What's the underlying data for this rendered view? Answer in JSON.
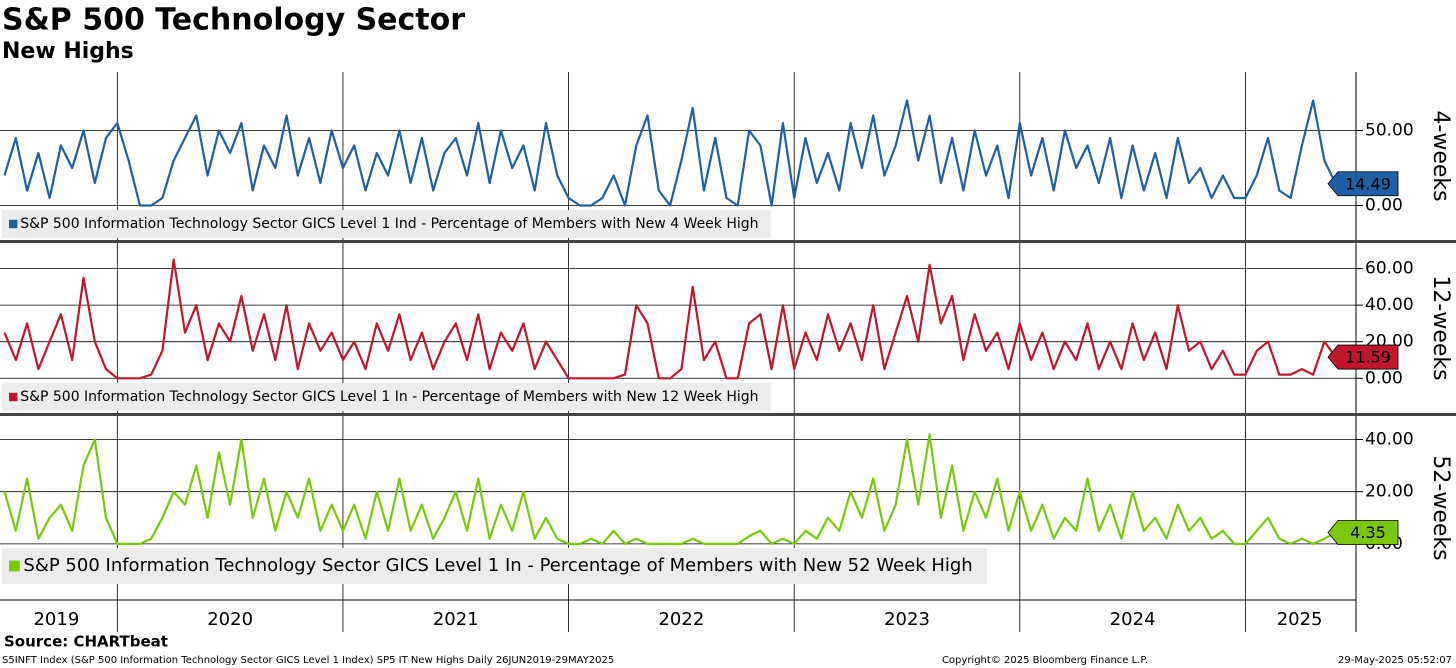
{
  "title": "S&P 500 Technology Sector",
  "subtitle": "New Highs",
  "source": "Source: CHARTbeat",
  "footer_left": "S5INFT Index (S&P 500 Information Technology Sector GICS Level 1 Index) SP5 IT New Highs  Daily 26JUN2019-29MAY2025",
  "footer_center": "Copyright© 2025 Bloomberg Finance L.P.",
  "footer_right": "29-May-2025 05:52:07",
  "chart_data": [
    {
      "type": "line",
      "ylabel": "4-weeks",
      "x": [
        2019.5,
        2019.55,
        2019.6,
        2019.65,
        2019.7,
        2019.75,
        2019.8,
        2019.85,
        2019.9,
        2019.95,
        2020,
        2020.05,
        2020.1,
        2020.15,
        2020.2,
        2020.25,
        2020.3,
        2020.35,
        2020.4,
        2020.45,
        2020.5,
        2020.55,
        2020.6,
        2020.65,
        2020.7,
        2020.75,
        2020.8,
        2020.85,
        2020.9,
        2020.95,
        2021,
        2021.05,
        2021.1,
        2021.15,
        2021.2,
        2021.25,
        2021.3,
        2021.35,
        2021.4,
        2021.45,
        2021.5,
        2021.55,
        2021.6,
        2021.65,
        2021.7,
        2021.75,
        2021.8,
        2021.85,
        2021.9,
        2021.95,
        2022,
        2022.05,
        2022.1,
        2022.15,
        2022.2,
        2022.25,
        2022.3,
        2022.35,
        2022.4,
        2022.45,
        2022.5,
        2022.55,
        2022.6,
        2022.65,
        2022.7,
        2022.75,
        2022.8,
        2022.85,
        2022.9,
        2022.95,
        2023,
        2023.05,
        2023.1,
        2023.15,
        2023.2,
        2023.25,
        2023.3,
        2023.35,
        2023.4,
        2023.45,
        2023.5,
        2023.55,
        2023.6,
        2023.65,
        2023.7,
        2023.75,
        2023.8,
        2023.85,
        2023.9,
        2023.95,
        2024,
        2024.05,
        2024.1,
        2024.15,
        2024.2,
        2024.25,
        2024.3,
        2024.35,
        2024.4,
        2024.45,
        2024.5,
        2024.55,
        2024.6,
        2024.65,
        2024.7,
        2024.75,
        2024.8,
        2024.85,
        2024.9,
        2024.95,
        2025,
        2025.05,
        2025.1,
        2025.15,
        2025.2,
        2025.25,
        2025.3,
        2025.35,
        2025.4
      ],
      "xlim": [
        2019.48,
        2025.49
      ],
      "xticks": [
        2020,
        2021,
        2022,
        2023,
        2024,
        2025
      ],
      "ylim": [
        -23,
        89
      ],
      "yticks": [
        {
          "value": 0,
          "label": "0.00"
        },
        {
          "value": 50,
          "label": "50.00"
        }
      ],
      "series": [
        {
          "name": "S&P 500 Information Technology Sector GICS Level 1 Ind - Percentage of Members with New 4 Week High",
          "color": "#1f5fa6",
          "values": [
            20,
            45,
            10,
            35,
            5,
            40,
            25,
            50,
            15,
            45,
            55,
            30,
            0,
            0,
            5,
            30,
            45,
            60,
            20,
            50,
            35,
            55,
            10,
            40,
            25,
            60,
            20,
            45,
            15,
            50,
            25,
            40,
            10,
            35,
            20,
            50,
            15,
            45,
            10,
            35,
            45,
            20,
            55,
            15,
            50,
            25,
            40,
            10,
            55,
            20,
            5,
            0,
            0,
            5,
            20,
            0,
            40,
            60,
            10,
            0,
            30,
            65,
            10,
            45,
            5,
            0,
            50,
            40,
            0,
            55,
            5,
            45,
            15,
            35,
            10,
            55,
            25,
            60,
            20,
            40,
            70,
            30,
            60,
            15,
            45,
            10,
            50,
            20,
            40,
            5,
            55,
            20,
            45,
            10,
            50,
            25,
            40,
            15,
            45,
            5,
            40,
            10,
            35,
            5,
            45,
            15,
            25,
            5,
            20,
            5,
            5,
            20,
            45,
            10,
            5,
            40,
            70,
            30,
            14.49
          ]
        }
      ]
    },
    {
      "type": "line",
      "ylabel": "12-weeks",
      "x": [
        2019.5,
        2019.55,
        2019.6,
        2019.65,
        2019.7,
        2019.75,
        2019.8,
        2019.85,
        2019.9,
        2019.95,
        2020,
        2020.05,
        2020.1,
        2020.15,
        2020.2,
        2020.25,
        2020.3,
        2020.35,
        2020.4,
        2020.45,
        2020.5,
        2020.55,
        2020.6,
        2020.65,
        2020.7,
        2020.75,
        2020.8,
        2020.85,
        2020.9,
        2020.95,
        2021,
        2021.05,
        2021.1,
        2021.15,
        2021.2,
        2021.25,
        2021.3,
        2021.35,
        2021.4,
        2021.45,
        2021.5,
        2021.55,
        2021.6,
        2021.65,
        2021.7,
        2021.75,
        2021.8,
        2021.85,
        2021.9,
        2021.95,
        2022,
        2022.05,
        2022.1,
        2022.15,
        2022.2,
        2022.25,
        2022.3,
        2022.35,
        2022.4,
        2022.45,
        2022.5,
        2022.55,
        2022.6,
        2022.65,
        2022.7,
        2022.75,
        2022.8,
        2022.85,
        2022.9,
        2022.95,
        2023,
        2023.05,
        2023.1,
        2023.15,
        2023.2,
        2023.25,
        2023.3,
        2023.35,
        2023.4,
        2023.45,
        2023.5,
        2023.55,
        2023.6,
        2023.65,
        2023.7,
        2023.75,
        2023.8,
        2023.85,
        2023.9,
        2023.95,
        2024,
        2024.05,
        2024.1,
        2024.15,
        2024.2,
        2024.25,
        2024.3,
        2024.35,
        2024.4,
        2024.45,
        2024.5,
        2024.55,
        2024.6,
        2024.65,
        2024.7,
        2024.75,
        2024.8,
        2024.85,
        2024.9,
        2024.95,
        2025,
        2025.05,
        2025.1,
        2025.15,
        2025.2,
        2025.25,
        2025.3,
        2025.35,
        2025.4
      ],
      "xlim": [
        2019.48,
        2025.49
      ],
      "xticks": [
        2020,
        2021,
        2022,
        2023,
        2024,
        2025
      ],
      "ylim": [
        -19,
        74
      ],
      "yticks": [
        {
          "value": 0,
          "label": "0.00"
        },
        {
          "value": 20,
          "label": "20.00"
        },
        {
          "value": 40,
          "label": "40.00"
        },
        {
          "value": 60,
          "label": "60.00"
        }
      ],
      "series": [
        {
          "name": "S&P 500 Information Technology Sector GICS Level 1 In - Percentage of Members with New 12 Week High",
          "color": "#c0162e",
          "values": [
            25,
            10,
            30,
            5,
            20,
            35,
            10,
            55,
            20,
            5,
            0,
            0,
            0,
            2,
            15,
            65,
            25,
            40,
            10,
            30,
            20,
            45,
            15,
            35,
            10,
            40,
            5,
            30,
            15,
            25,
            10,
            20,
            5,
            30,
            15,
            35,
            10,
            25,
            5,
            20,
            30,
            10,
            35,
            5,
            25,
            15,
            30,
            5,
            20,
            10,
            0,
            0,
            0,
            0,
            0,
            2,
            40,
            30,
            0,
            0,
            5,
            50,
            10,
            20,
            0,
            0,
            30,
            35,
            5,
            40,
            5,
            25,
            10,
            35,
            15,
            30,
            10,
            40,
            5,
            25,
            45,
            20,
            62,
            30,
            45,
            10,
            35,
            15,
            25,
            5,
            30,
            10,
            25,
            5,
            20,
            10,
            30,
            5,
            20,
            5,
            30,
            10,
            25,
            5,
            40,
            15,
            20,
            5,
            15,
            2,
            2,
            15,
            20,
            2,
            2,
            5,
            2,
            20,
            11.59
          ]
        }
      ]
    },
    {
      "type": "line",
      "ylabel": "52-weeks",
      "x": [
        2019.5,
        2019.55,
        2019.6,
        2019.65,
        2019.7,
        2019.75,
        2019.8,
        2019.85,
        2019.9,
        2019.95,
        2020,
        2020.05,
        2020.1,
        2020.15,
        2020.2,
        2020.25,
        2020.3,
        2020.35,
        2020.4,
        2020.45,
        2020.5,
        2020.55,
        2020.6,
        2020.65,
        2020.7,
        2020.75,
        2020.8,
        2020.85,
        2020.9,
        2020.95,
        2021,
        2021.05,
        2021.1,
        2021.15,
        2021.2,
        2021.25,
        2021.3,
        2021.35,
        2021.4,
        2021.45,
        2021.5,
        2021.55,
        2021.6,
        2021.65,
        2021.7,
        2021.75,
        2021.8,
        2021.85,
        2021.9,
        2021.95,
        2022,
        2022.05,
        2022.1,
        2022.15,
        2022.2,
        2022.25,
        2022.3,
        2022.35,
        2022.4,
        2022.45,
        2022.5,
        2022.55,
        2022.6,
        2022.65,
        2022.7,
        2022.75,
        2022.8,
        2022.85,
        2022.9,
        2022.95,
        2023,
        2023.05,
        2023.1,
        2023.15,
        2023.2,
        2023.25,
        2023.3,
        2023.35,
        2023.4,
        2023.45,
        2023.5,
        2023.55,
        2023.6,
        2023.65,
        2023.7,
        2023.75,
        2023.8,
        2023.85,
        2023.9,
        2023.95,
        2024,
        2024.05,
        2024.1,
        2024.15,
        2024.2,
        2024.25,
        2024.3,
        2024.35,
        2024.4,
        2024.45,
        2024.5,
        2024.55,
        2024.6,
        2024.65,
        2024.7,
        2024.75,
        2024.8,
        2024.85,
        2024.9,
        2024.95,
        2025,
        2025.05,
        2025.1,
        2025.15,
        2025.2,
        2025.25,
        2025.3,
        2025.35,
        2025.4
      ],
      "xlim": [
        2019.48,
        2025.49
      ],
      "xticks": [
        2020,
        2021,
        2022,
        2023,
        2024,
        2025
      ],
      "xlabels": [
        {
          "value": 2019.73,
          "label": "2019"
        },
        {
          "value": 2020.5,
          "label": "2020"
        },
        {
          "value": 2021.5,
          "label": "2021"
        },
        {
          "value": 2022.5,
          "label": "2022"
        },
        {
          "value": 2023.5,
          "label": "2023"
        },
        {
          "value": 2024.5,
          "label": "2024"
        },
        {
          "value": 2025.24,
          "label": "2025"
        }
      ],
      "ylim": [
        -21.5,
        49
      ],
      "yticks": [
        {
          "value": 0,
          "label": "0.00"
        },
        {
          "value": 20,
          "label": "20.00"
        },
        {
          "value": 40,
          "label": "40.00"
        }
      ],
      "series": [
        {
          "name": "S&P 500 Information Technology Sector GICS Level 1 In - Percentage of Members with New 52 Week High",
          "color": "#7ac70c",
          "values": [
            20,
            5,
            25,
            2,
            10,
            15,
            5,
            30,
            40,
            10,
            0,
            0,
            0,
            2,
            10,
            20,
            15,
            30,
            10,
            35,
            15,
            40,
            10,
            25,
            5,
            20,
            10,
            25,
            5,
            15,
            5,
            15,
            2,
            20,
            5,
            25,
            5,
            15,
            2,
            10,
            20,
            5,
            25,
            2,
            15,
            5,
            20,
            2,
            10,
            2,
            0,
            0,
            2,
            0,
            5,
            0,
            2,
            0,
            0,
            0,
            0,
            2,
            0,
            0,
            0,
            0,
            3,
            5,
            0,
            2,
            0,
            5,
            2,
            10,
            5,
            20,
            10,
            25,
            5,
            15,
            40,
            15,
            42,
            10,
            30,
            5,
            20,
            10,
            25,
            5,
            20,
            5,
            15,
            2,
            10,
            5,
            25,
            5,
            15,
            2,
            20,
            5,
            10,
            2,
            15,
            5,
            10,
            2,
            5,
            0,
            0,
            5,
            10,
            2,
            0,
            2,
            0,
            2,
            4.35
          ]
        }
      ]
    }
  ]
}
